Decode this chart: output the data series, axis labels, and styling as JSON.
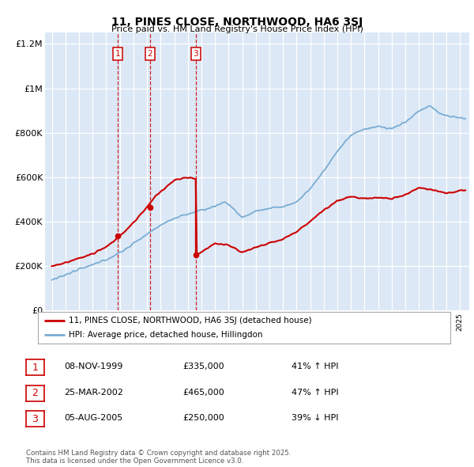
{
  "title": "11, PINES CLOSE, NORTHWOOD, HA6 3SJ",
  "subtitle": "Price paid vs. HM Land Registry's House Price Index (HPI)",
  "legend_property": "11, PINES CLOSE, NORTHWOOD, HA6 3SJ (detached house)",
  "legend_hpi": "HPI: Average price, detached house, Hillingdon",
  "footer": "Contains HM Land Registry data © Crown copyright and database right 2025.\nThis data is licensed under the Open Government Licence v3.0.",
  "transactions": [
    {
      "num": 1,
      "date": "08-NOV-1999",
      "price": 335000,
      "pct": "41%",
      "dir": "↑",
      "year": 1999.86
    },
    {
      "num": 2,
      "date": "25-MAR-2002",
      "price": 465000,
      "pct": "47%",
      "dir": "↑",
      "year": 2002.23
    },
    {
      "num": 3,
      "date": "05-AUG-2005",
      "price": 250000,
      "pct": "39%",
      "dir": "↓",
      "year": 2005.59
    }
  ],
  "property_color": "#cc0000",
  "hpi_color": "#7aadd4",
  "vline_color": "#cc0000",
  "box_color": "#cc0000",
  "ylim": [
    0,
    1250000
  ],
  "xlim_start": 1994.5,
  "xlim_end": 2025.7,
  "ytick_labels": [
    "£0",
    "£200K",
    "£400K",
    "£600K",
    "£800K",
    "£1M",
    "£1.2M"
  ],
  "ytick_values": [
    0,
    200000,
    400000,
    600000,
    800000,
    1000000,
    1200000
  ],
  "plot_bg_color": "#dce8f5"
}
